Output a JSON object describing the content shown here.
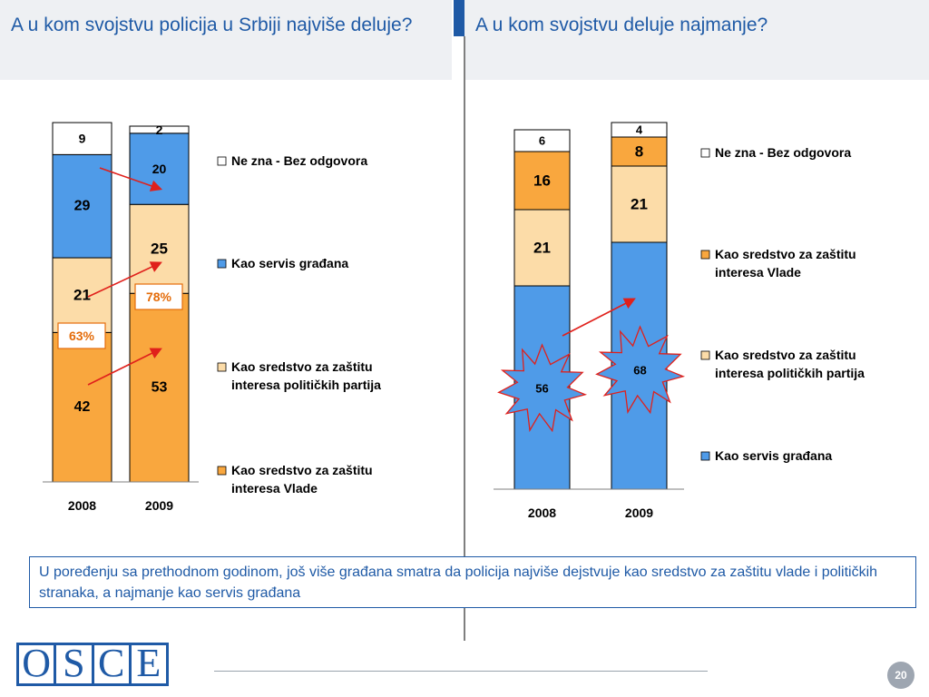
{
  "slide": {
    "title_left": "A u kom svojstvu policija u Srbiji najviše deluje?",
    "title_right": "A u kom svojstvu deluje najmanje?",
    "note": "U poređenju sa prethodnom godinom, još više građana smatra da policija najviše dejstvuje kao sredstvo za zaštitu vlade i političkih stranaka, a najmanje kao servis građana",
    "logo_letters": [
      "O",
      "S",
      "C",
      "E"
    ],
    "page_number": "20"
  },
  "chart_data": [
    {
      "type": "bar",
      "stacked": true,
      "categories": [
        "2008",
        "2009"
      ],
      "ylim": [
        0,
        100
      ],
      "series": [
        {
          "name": "Kao sredstvo za zaštitu interesa Vlade",
          "values": [
            42,
            53
          ],
          "color": "#f9a73e"
        },
        {
          "name": "Kao sredstvo za zaštitu interesa političkih partija",
          "values": [
            21,
            25
          ],
          "color": "#fcdca8"
        },
        {
          "name": "Kao servis građana",
          "values": [
            29,
            20
          ],
          "color": "#4f9be8"
        },
        {
          "name": "Ne zna - Bez odgovora",
          "values": [
            9,
            2
          ],
          "color": "#ffffff"
        }
      ],
      "legend_order": [
        3,
        2,
        1,
        0
      ],
      "annotations": [
        {
          "text": "63%",
          "category": "2008",
          "color": "#e46c0a"
        },
        {
          "text": "78%",
          "category": "2009",
          "color": "#e46c0a"
        }
      ]
    },
    {
      "type": "bar",
      "stacked": true,
      "categories": [
        "2008",
        "2009"
      ],
      "ylim": [
        0,
        100
      ],
      "series": [
        {
          "name": "Kao servis građana",
          "values": [
            56,
            68
          ],
          "color": "#4f9be8"
        },
        {
          "name": "Kao sredstvo za zaštitu interesa političkih partija",
          "values": [
            21,
            21
          ],
          "color": "#fcdca8"
        },
        {
          "name": "Kao sredstvo za zaštitu interesa Vlade",
          "values": [
            16,
            8
          ],
          "color": "#f9a73e"
        },
        {
          "name": "Ne zna - Bez odgovora",
          "values": [
            6,
            4
          ],
          "color": "#ffffff"
        }
      ],
      "legend_order": [
        3,
        2,
        1,
        0
      ]
    }
  ]
}
